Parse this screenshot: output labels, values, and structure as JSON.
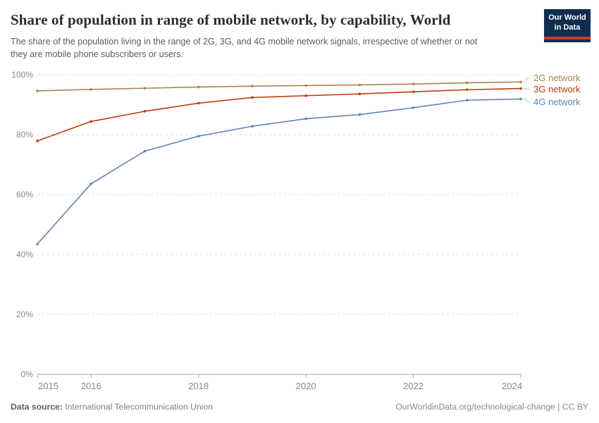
{
  "header": {
    "title": "Share of population in range of mobile network, by capability, World",
    "subtitle": "The share of the population living in the range of 2G, 3G, and 4G mobile network signals, irrespective of whether or not they are mobile phone subscribers or users.",
    "logo": {
      "line1": "Our World",
      "line2": "in Data",
      "bg_color": "#102D50",
      "stripe_color": "#D3352B"
    }
  },
  "chart_data": {
    "type": "line",
    "x": [
      2015,
      2016,
      2017,
      2018,
      2019,
      2020,
      2021,
      2022,
      2023,
      2024
    ],
    "series": [
      {
        "name": "2G network",
        "color": "#A8854C",
        "values": [
          94.6,
          95.1,
          95.5,
          95.9,
          96.2,
          96.4,
          96.6,
          96.9,
          97.3,
          97.6
        ]
      },
      {
        "name": "3G network",
        "color": "#BF3B0B",
        "values": [
          77.9,
          84.4,
          87.8,
          90.5,
          92.4,
          93.0,
          93.6,
          94.3,
          95.0,
          95.4
        ]
      },
      {
        "name": "4G network",
        "color": "#5E80B8",
        "values": [
          43.5,
          63.6,
          74.5,
          79.5,
          82.8,
          85.3,
          86.7,
          89.0,
          91.5,
          91.9
        ]
      }
    ],
    "ylim": [
      0,
      100
    ],
    "yticks": [
      {
        "value": 0,
        "label": "0%"
      },
      {
        "value": 20,
        "label": "20%"
      },
      {
        "value": 40,
        "label": "40%"
      },
      {
        "value": 60,
        "label": "60%"
      },
      {
        "value": 80,
        "label": "80%"
      },
      {
        "value": 100,
        "label": "100%"
      }
    ],
    "xticks": [
      2015,
      2016,
      2018,
      2020,
      2022,
      2024
    ],
    "grid": "horizontal-dashed",
    "legend_position": "right",
    "title": "Share of population in range of mobile network, by capability, World",
    "xlabel": "",
    "ylabel": ""
  },
  "footer": {
    "source_label": "Data source:",
    "source_value": "International Telecommunication Union",
    "link": "OurWorldinData.org/technological-change",
    "separator": "|",
    "license": "CC BY"
  },
  "colors": {
    "grid": "#d9d9d9",
    "axis": "#a5a5a5",
    "tick_label": "#888888",
    "connector": "#c9c9c9"
  }
}
